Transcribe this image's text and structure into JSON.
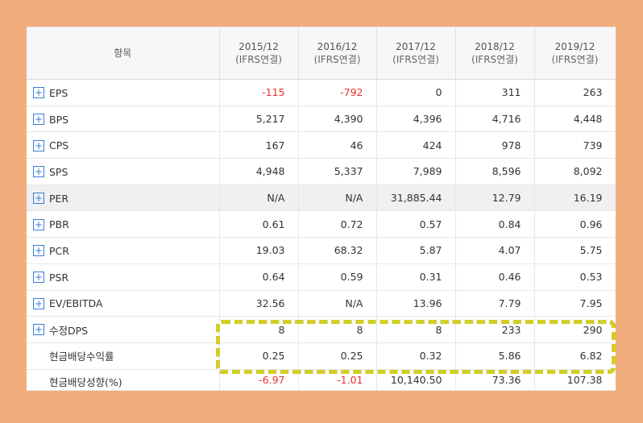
{
  "header": {
    "item_label": "항목",
    "periods": [
      {
        "period": "2015/12",
        "basis": "(IFRS연결)"
      },
      {
        "period": "2016/12",
        "basis": "(IFRS연결)"
      },
      {
        "period": "2017/12",
        "basis": "(IFRS연결)"
      },
      {
        "period": "2018/12",
        "basis": "(IFRS연결)"
      },
      {
        "period": "2019/12",
        "basis": "(IFRS연결)"
      }
    ]
  },
  "rows": [
    {
      "label": "EPS",
      "expand": true,
      "values": [
        "-115",
        "-792",
        "0",
        "311",
        "263"
      ]
    },
    {
      "label": "BPS",
      "expand": true,
      "values": [
        "5,217",
        "4,390",
        "4,396",
        "4,716",
        "4,448"
      ]
    },
    {
      "label": "CPS",
      "expand": true,
      "values": [
        "167",
        "46",
        "424",
        "978",
        "739"
      ]
    },
    {
      "label": "SPS",
      "expand": true,
      "values": [
        "4,948",
        "5,337",
        "7,989",
        "8,596",
        "8,092"
      ]
    },
    {
      "label": "PER",
      "expand": true,
      "values": [
        "N/A",
        "N/A",
        "31,885.44",
        "12.79",
        "16.19"
      ]
    },
    {
      "label": "PBR",
      "expand": true,
      "values": [
        "0.61",
        "0.72",
        "0.57",
        "0.84",
        "0.96"
      ]
    },
    {
      "label": "PCR",
      "expand": true,
      "values": [
        "19.03",
        "68.32",
        "5.87",
        "4.07",
        "5.75"
      ]
    },
    {
      "label": "PSR",
      "expand": true,
      "values": [
        "0.64",
        "0.59",
        "0.31",
        "0.46",
        "0.53"
      ]
    },
    {
      "label": "EV/EBITDA",
      "expand": true,
      "values": [
        "32.56",
        "N/A",
        "13.96",
        "7.79",
        "7.95"
      ]
    },
    {
      "label": "수정DPS",
      "expand": true,
      "values": [
        "8",
        "8",
        "8",
        "233",
        "290"
      ]
    },
    {
      "label": "현금배당수익률",
      "expand": false,
      "values": [
        "0.25",
        "0.25",
        "0.32",
        "5.86",
        "6.82"
      ]
    },
    {
      "label": "현금배당성향(%)",
      "expand": false,
      "values": [
        "-6.97",
        "-1.01",
        "10,140.50",
        "73.36",
        "107.38"
      ]
    }
  ],
  "expand_symbol": "+",
  "colors": {
    "background": "#f2ad7d",
    "negative": "#e8332e",
    "expand_icon": "#3a7bd5",
    "highlight_border_dark": "#1c3a3e",
    "highlight_border_yellow": "#f4e81f"
  }
}
